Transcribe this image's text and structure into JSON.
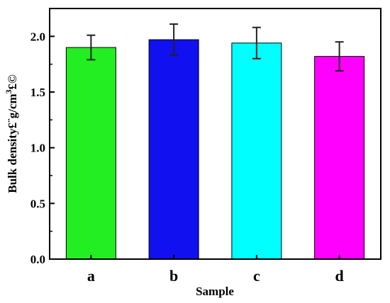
{
  "chart_data": {
    "type": "bar",
    "categories": [
      "a",
      "b",
      "c",
      "d"
    ],
    "values": [
      1.9,
      1.97,
      1.94,
      1.82
    ],
    "errors": [
      0.11,
      0.14,
      0.14,
      0.13
    ],
    "colors": [
      "#22ee22",
      "#1010f0",
      "#00ffff",
      "#ff00ff"
    ],
    "xlabel": "Sample",
    "ylabel": "Bulk density£¨g/cm",
    "ylabel_sup": "3",
    "ylabel_end": "£©",
    "ylim": [
      0.0,
      2.25
    ],
    "yticks": [
      "0.0",
      "0.5",
      "1.0",
      "1.5",
      "2.0"
    ],
    "ytick_values": [
      0.0,
      0.5,
      1.0,
      1.5,
      2.0
    ],
    "grid": false,
    "legend": "none"
  }
}
